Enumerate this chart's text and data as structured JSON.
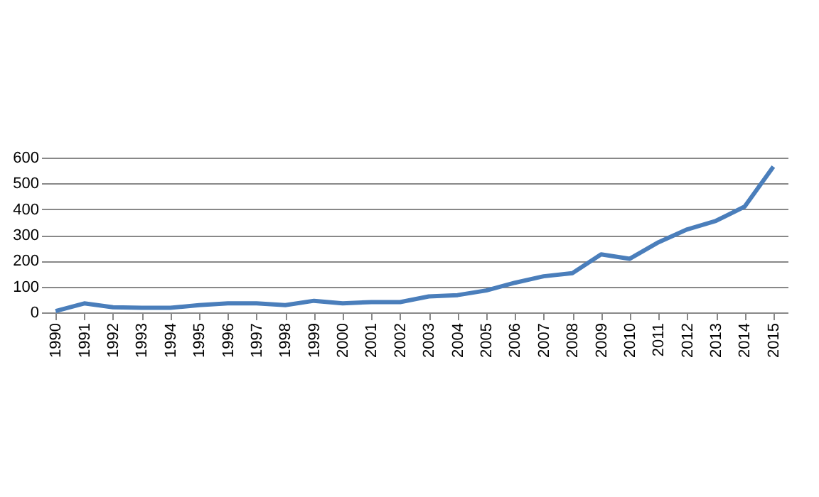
{
  "chart_data": {
    "type": "line",
    "categories": [
      "1990",
      "1991",
      "1992",
      "1993",
      "1994",
      "1995",
      "1996",
      "1997",
      "1998",
      "1999",
      "2000",
      "2001",
      "2002",
      "2003",
      "2004",
      "2005",
      "2006",
      "2007",
      "2008",
      "2009",
      "2010",
      "2011",
      "2012",
      "2013",
      "2014",
      "2015"
    ],
    "series": [
      {
        "color": "#4a7ebb",
        "values": [
          5,
          35,
          20,
          18,
          18,
          28,
          35,
          35,
          28,
          45,
          35,
          40,
          40,
          62,
          67,
          85,
          115,
          140,
          152,
          225,
          208,
          272,
          322,
          355,
          410,
          565
        ]
      }
    ],
    "ylim": [
      0,
      600
    ],
    "yticks": [
      0,
      100,
      200,
      300,
      400,
      500,
      600
    ],
    "grid": "y",
    "marker": "none",
    "line_style": "solid"
  }
}
